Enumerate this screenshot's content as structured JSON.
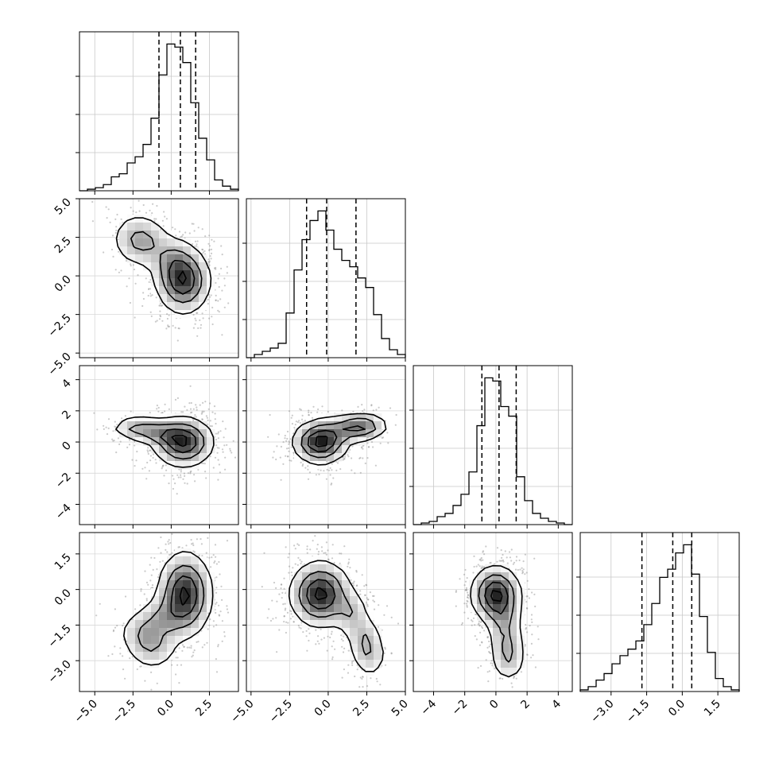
{
  "chart_data": {
    "type": "corner",
    "parameters": [
      {
        "range": [
          -6.0,
          4.4
        ],
        "ticks": [
          -5.0,
          -2.5,
          0.0,
          2.5
        ],
        "tick_labels": [
          "−5.0",
          "−2.5",
          "0.0",
          "2.5"
        ],
        "quantiles": [
          -0.8,
          0.6,
          1.6
        ],
        "peak": 0.95,
        "hist": [
          0.0,
          0.01,
          0.02,
          0.04,
          0.09,
          0.11,
          0.18,
          0.22,
          0.3,
          0.47,
          0.75,
          0.95,
          0.93,
          0.83,
          0.57,
          0.34,
          0.2,
          0.07,
          0.03,
          0.01
        ]
      },
      {
        "range": [
          -5.3,
          5.0
        ],
        "ticks": [
          -5.0,
          -2.5,
          0.0,
          2.5,
          5.0
        ],
        "tick_labels": [
          "−5.0",
          "−2.5",
          "0.0",
          "2.5",
          "5.0"
        ],
        "quantiles": [
          -1.4,
          -0.1,
          1.8
        ],
        "peak": 0.92,
        "hist": [
          0.0,
          0.02,
          0.04,
          0.06,
          0.09,
          0.28,
          0.55,
          0.74,
          0.86,
          0.92,
          0.8,
          0.68,
          0.61,
          0.57,
          0.5,
          0.44,
          0.27,
          0.12,
          0.05,
          0.02
        ]
      },
      {
        "range": [
          -5.3,
          4.9
        ],
        "ticks": [
          -4,
          -2,
          0,
          2,
          4
        ],
        "tick_labels": [
          "−4",
          "−2",
          "0",
          "2",
          "4"
        ],
        "quantiles": [
          -0.9,
          0.2,
          1.3
        ],
        "peak": 0.92,
        "hist": [
          0.0,
          0.01,
          0.02,
          0.05,
          0.07,
          0.12,
          0.19,
          0.33,
          0.62,
          0.92,
          0.9,
          0.74,
          0.68,
          0.3,
          0.15,
          0.07,
          0.04,
          0.02,
          0.01,
          0.0
        ]
      },
      {
        "range": [
          -4.3,
          2.4
        ],
        "ticks": [
          -3.0,
          -1.5,
          0.0,
          1.5
        ],
        "tick_labels": [
          "−3.0",
          "−1.5",
          "0.0",
          "1.5"
        ],
        "quantiles": [
          -1.7,
          -0.4,
          0.4
        ],
        "peak": 0.9,
        "hist": [
          0.01,
          0.03,
          0.07,
          0.11,
          0.17,
          0.22,
          0.26,
          0.31,
          0.41,
          0.54,
          0.7,
          0.75,
          0.85,
          0.9,
          0.72,
          0.46,
          0.24,
          0.08,
          0.03,
          0.01
        ]
      }
    ],
    "panels": [
      {
        "row": 1,
        "col": 0,
        "mean": [
          0.8,
          -0.3
        ],
        "sd": [
          0.9,
          1.1
        ],
        "extra": {
          "points": [
            [
              -1.5,
              2.2
            ],
            [
              -2.5,
              2.4
            ],
            [
              0.0,
              1.0
            ]
          ],
          "w": 0.8,
          "h": 0.9
        }
      },
      {
        "row": 2,
        "col": 0,
        "mean": [
          0.8,
          0.0
        ],
        "sd": [
          1.0,
          0.8
        ],
        "extra": {
          "points": [
            [
              -1.5,
              0.8
            ],
            [
              -2.5,
              0.9
            ],
            [
              -0.5,
              0.5
            ]
          ],
          "w": 0.8,
          "h": 0.4
        }
      },
      {
        "row": 2,
        "col": 1,
        "mean": [
          -0.5,
          0.0
        ],
        "sd": [
          0.9,
          0.7
        ],
        "extra": {
          "points": [
            [
              1.0,
              0.8
            ],
            [
              2.0,
              1.0
            ],
            [
              2.5,
              1.0
            ]
          ],
          "w": 0.8,
          "h": 0.45
        }
      },
      {
        "row": 3,
        "col": 0,
        "mean": [
          0.9,
          -0.2
        ],
        "sd": [
          0.9,
          0.9
        ],
        "extra": {
          "points": [
            [
              -0.5,
              -1.2
            ],
            [
              -1.8,
              -1.8
            ],
            [
              -1.2,
              -2.5
            ]
          ],
          "w": 0.9,
          "h": 0.5
        }
      },
      {
        "row": 3,
        "col": 1,
        "mean": [
          -0.5,
          -0.2
        ],
        "sd": [
          1.0,
          0.7
        ],
        "extra": {
          "points": [
            [
              1.5,
              -1.0
            ],
            [
              2.3,
              -2.0
            ],
            [
              2.7,
              -2.8
            ]
          ],
          "w": 0.6,
          "h": 0.5
        }
      },
      {
        "row": 3,
        "col": 2,
        "mean": [
          0.0,
          -0.2
        ],
        "sd": [
          0.8,
          0.6
        ],
        "extra": {
          "points": [
            [
              0.5,
              -1.2
            ],
            [
              0.7,
              -2.2
            ],
            [
              0.8,
              -3.0
            ]
          ],
          "w": 0.6,
          "h": 0.5
        }
      }
    ],
    "xlabel": "",
    "ylabel": "",
    "grid": true
  }
}
